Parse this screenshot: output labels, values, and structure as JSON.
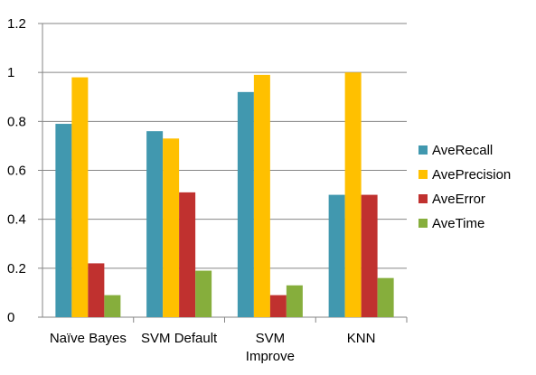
{
  "chart_data": {
    "type": "bar",
    "title": "",
    "xlabel": "",
    "ylabel": "",
    "ylim": [
      0,
      1.2
    ],
    "yticks": [
      "0",
      "0.2",
      "0.4",
      "0.6",
      "0.8",
      "1",
      "1.2"
    ],
    "grid": true,
    "legend_position": "right",
    "categories": [
      [
        "Naïve Bayes"
      ],
      [
        "SVM Default"
      ],
      [
        "SVM",
        "Improve"
      ],
      [
        "KNN"
      ]
    ],
    "series": [
      {
        "name": "AveRecall",
        "color": "#4198AF",
        "values": [
          0.79,
          0.76,
          0.92,
          0.5
        ]
      },
      {
        "name": "AvePrecision",
        "color": "#FFC000",
        "values": [
          0.98,
          0.73,
          0.99,
          1.0
        ]
      },
      {
        "name": "AveError",
        "color": "#C0312F",
        "values": [
          0.22,
          0.51,
          0.09,
          0.5
        ]
      },
      {
        "name": "AveTime",
        "color": "#86AE3C",
        "values": [
          0.09,
          0.19,
          0.13,
          0.16
        ]
      }
    ]
  }
}
